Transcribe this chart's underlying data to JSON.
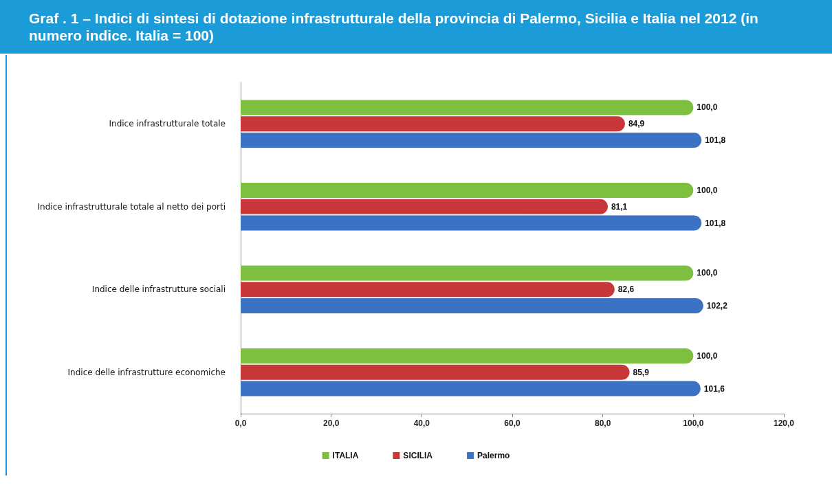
{
  "chart_data": {
    "type": "bar",
    "orientation": "horizontal",
    "title": "Graf . 1 – Indici di sintesi di dotazione infrastrutturale della provincia di Palermo, Sicilia e Italia nel 2012 (in numero indice. Italia = 100)",
    "categories": [
      "Indice infrastrutturale totale",
      "Indice infrastrutturale totale al netto dei porti",
      "Indice delle infrastrutture sociali",
      "Indice delle infrastrutture economiche"
    ],
    "series": [
      {
        "name": "ITALIA",
        "color": "#7dbf3e",
        "values": [
          100.0,
          100.0,
          100.0,
          100.0
        ],
        "value_labels": [
          "100,0",
          "100,0",
          "100,0",
          "100,0"
        ]
      },
      {
        "name": "SICILIA",
        "color": "#c8373a",
        "values": [
          84.9,
          81.1,
          82.6,
          85.9
        ],
        "value_labels": [
          "84,9",
          "81,1",
          "82,6",
          "85,9"
        ]
      },
      {
        "name": "Palermo",
        "color": "#3b72c4",
        "values": [
          101.8,
          101.8,
          102.2,
          101.6
        ],
        "value_labels": [
          "101,8",
          "101,8",
          "102,2",
          "101,6"
        ]
      }
    ],
    "xlim": [
      0,
      120
    ],
    "xticks": [
      {
        "value": 0,
        "label": "0,0"
      },
      {
        "value": 20,
        "label": "20,0"
      },
      {
        "value": 40,
        "label": "40,0"
      },
      {
        "value": 60,
        "label": "60,0"
      },
      {
        "value": 80,
        "label": "80,0"
      },
      {
        "value": 100,
        "label": "100,0"
      },
      {
        "value": 120,
        "label": "120,0"
      }
    ],
    "grid": false,
    "legend": "bottom"
  }
}
